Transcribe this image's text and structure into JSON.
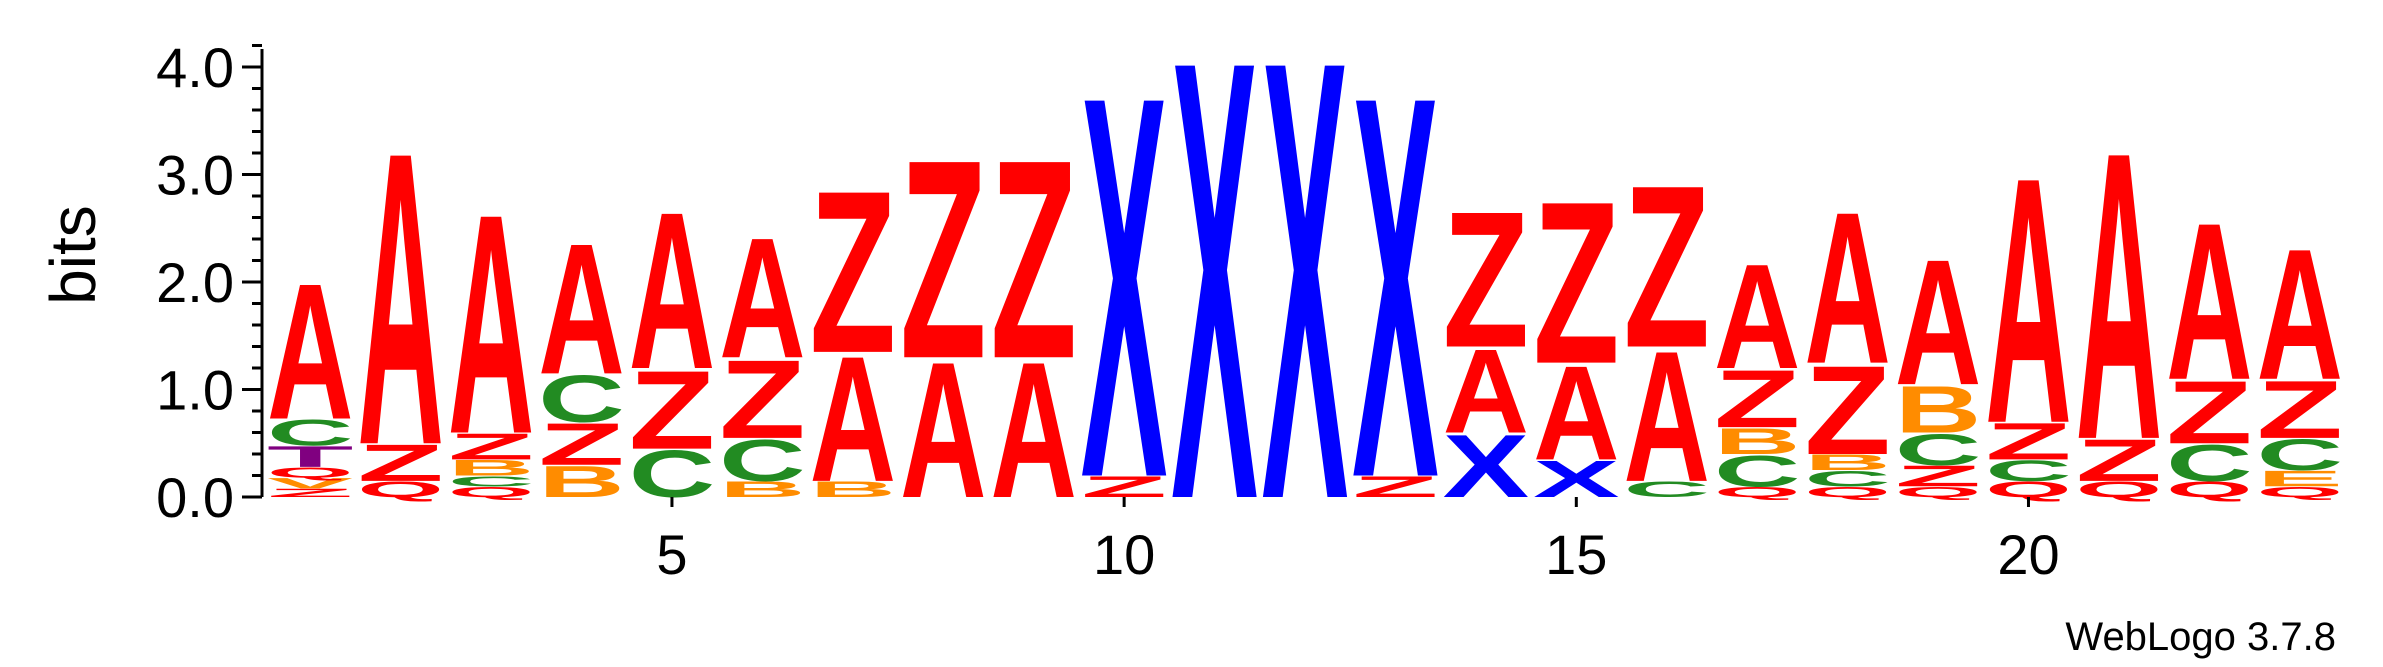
{
  "chart_data": {
    "type": "sequence-logo",
    "ylabel": "bits",
    "ylim": [
      0,
      4.0
    ],
    "y_ticks": [
      "0.0",
      "1.0",
      "2.0",
      "3.0",
      "4.0"
    ],
    "x_ticks": [
      5,
      10,
      15,
      20
    ],
    "x_range": [
      1,
      23
    ],
    "colors": {
      "A": "#ff0000",
      "Z": "#ff0000",
      "Q": "#ff0000",
      "X": "#0000ff",
      "C": "#228b22",
      "B": "#ff8c00",
      "T": "#800080",
      "V": "#ff8c00",
      "E": "#ff8c00"
    },
    "positions": [
      {
        "pos": 1,
        "letters": [
          {
            "l": "Z",
            "h": 0.08
          },
          {
            "l": "V",
            "h": 0.1
          },
          {
            "l": "Q",
            "h": 0.1
          },
          {
            "l": "T",
            "h": 0.2
          },
          {
            "l": "C",
            "h": 0.25
          },
          {
            "l": "A",
            "h": 1.3
          }
        ]
      },
      {
        "pos": 2,
        "letters": [
          {
            "l": "Q",
            "h": 0.15
          },
          {
            "l": "Z",
            "h": 0.35
          },
          {
            "l": "A",
            "h": 2.8
          }
        ]
      },
      {
        "pos": 3,
        "letters": [
          {
            "l": "Q",
            "h": 0.1
          },
          {
            "l": "C",
            "h": 0.1
          },
          {
            "l": "B",
            "h": 0.15
          },
          {
            "l": "Z",
            "h": 0.25
          },
          {
            "l": "A",
            "h": 2.1
          }
        ]
      },
      {
        "pos": 4,
        "letters": [
          {
            "l": "B",
            "h": 0.3
          },
          {
            "l": "Z",
            "h": 0.4
          },
          {
            "l": "C",
            "h": 0.45
          },
          {
            "l": "A",
            "h": 1.25
          }
        ]
      },
      {
        "pos": 5,
        "letters": [
          {
            "l": "C",
            "h": 0.45
          },
          {
            "l": "Z",
            "h": 0.75
          },
          {
            "l": "A",
            "h": 1.5
          }
        ]
      },
      {
        "pos": 6,
        "letters": [
          {
            "l": "B",
            "h": 0.15
          },
          {
            "l": "C",
            "h": 0.4
          },
          {
            "l": "Z",
            "h": 0.75
          },
          {
            "l": "A",
            "h": 1.15
          }
        ]
      },
      {
        "pos": 7,
        "letters": [
          {
            "l": "B",
            "h": 0.15
          },
          {
            "l": "A",
            "h": 1.2
          },
          {
            "l": "Z",
            "h": 1.55
          }
        ]
      },
      {
        "pos": 8,
        "letters": [
          {
            "l": "A",
            "h": 1.3
          },
          {
            "l": "Z",
            "h": 1.9
          }
        ]
      },
      {
        "pos": 9,
        "letters": [
          {
            "l": "A",
            "h": 1.3
          },
          {
            "l": "Z",
            "h": 1.9
          }
        ]
      },
      {
        "pos": 10,
        "letters": [
          {
            "l": "Z",
            "h": 0.2
          },
          {
            "l": "X",
            "h": 3.65
          }
        ]
      },
      {
        "pos": 11,
        "letters": [
          {
            "l": "X",
            "h": 4.2
          }
        ]
      },
      {
        "pos": 12,
        "letters": [
          {
            "l": "X",
            "h": 4.2
          }
        ]
      },
      {
        "pos": 13,
        "letters": [
          {
            "l": "Z",
            "h": 0.2
          },
          {
            "l": "X",
            "h": 3.65
          }
        ]
      },
      {
        "pos": 14,
        "letters": [
          {
            "l": "X",
            "h": 0.6
          },
          {
            "l": "A",
            "h": 0.8
          },
          {
            "l": "Z",
            "h": 1.3
          }
        ]
      },
      {
        "pos": 15,
        "letters": [
          {
            "l": "X",
            "h": 0.35
          },
          {
            "l": "A",
            "h": 0.9
          },
          {
            "l": "Z",
            "h": 1.55
          }
        ]
      },
      {
        "pos": 16,
        "letters": [
          {
            "l": "C",
            "h": 0.15
          },
          {
            "l": "A",
            "h": 1.25
          },
          {
            "l": "Z",
            "h": 1.55
          }
        ]
      },
      {
        "pos": 17,
        "letters": [
          {
            "l": "Q",
            "h": 0.1
          },
          {
            "l": "C",
            "h": 0.3
          },
          {
            "l": "B",
            "h": 0.25
          },
          {
            "l": "Z",
            "h": 0.55
          },
          {
            "l": "A",
            "h": 1.0
          }
        ]
      },
      {
        "pos": 18,
        "letters": [
          {
            "l": "Q",
            "h": 0.1
          },
          {
            "l": "C",
            "h": 0.15
          },
          {
            "l": "B",
            "h": 0.15
          },
          {
            "l": "Z",
            "h": 0.85
          },
          {
            "l": "A",
            "h": 1.45
          }
        ]
      },
      {
        "pos": 19,
        "letters": [
          {
            "l": "Q",
            "h": 0.1
          },
          {
            "l": "Z",
            "h": 0.2
          },
          {
            "l": "C",
            "h": 0.3
          },
          {
            "l": "B",
            "h": 0.45
          },
          {
            "l": "A",
            "h": 1.2
          }
        ]
      },
      {
        "pos": 20,
        "letters": [
          {
            "l": "Q",
            "h": 0.15
          },
          {
            "l": "C",
            "h": 0.2
          },
          {
            "l": "Z",
            "h": 0.35
          },
          {
            "l": "A",
            "h": 2.35
          }
        ]
      },
      {
        "pos": 21,
        "letters": [
          {
            "l": "Q",
            "h": 0.15
          },
          {
            "l": "Z",
            "h": 0.4
          },
          {
            "l": "A",
            "h": 2.75
          }
        ]
      },
      {
        "pos": 22,
        "letters": [
          {
            "l": "Q",
            "h": 0.15
          },
          {
            "l": "C",
            "h": 0.35
          },
          {
            "l": "Z",
            "h": 0.6
          },
          {
            "l": "A",
            "h": 1.5
          }
        ]
      },
      {
        "pos": 23,
        "letters": [
          {
            "l": "Q",
            "h": 0.1
          },
          {
            "l": "E",
            "h": 0.15
          },
          {
            "l": "C",
            "h": 0.3
          },
          {
            "l": "Z",
            "h": 0.55
          },
          {
            "l": "A",
            "h": 1.25
          }
        ]
      }
    ]
  },
  "credit": "WebLogo 3.7.8"
}
